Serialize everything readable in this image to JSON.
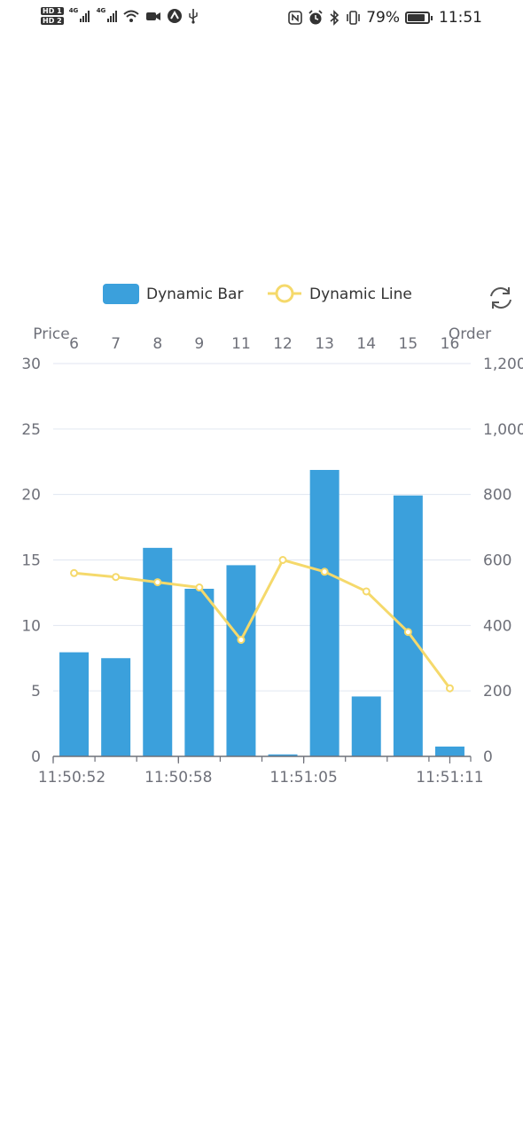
{
  "status_bar": {
    "hd1": "HD 1",
    "hd2": "HD 2",
    "net1": "4G",
    "net2": "4G",
    "battery_pct": "79%",
    "time": "11:51",
    "battery_level": 0.79
  },
  "chart_data": {
    "type": "bar",
    "legend": {
      "position": "top-center",
      "bar_label": "Dynamic Bar",
      "line_label": "Dynamic Line"
    },
    "refresh_icon": "refresh-icon",
    "x_bottom": {
      "tick_labels": [
        "11:50:52",
        "11:50:58",
        "11:51:05",
        "11:51:11"
      ],
      "tick_positions": [
        0,
        3,
        6,
        9
      ],
      "total_categories": 10
    },
    "x_top": {
      "categories": [
        "6",
        "7",
        "8",
        "9",
        "11",
        "12",
        "13",
        "14",
        "15",
        "16"
      ]
    },
    "y_left": {
      "name": "Price",
      "min": 0,
      "max": 30,
      "ticks": [
        0,
        5,
        10,
        15,
        20,
        25,
        30
      ]
    },
    "y_right": {
      "name": "Order",
      "min": 0,
      "max": 1200,
      "ticks": [
        0,
        200,
        400,
        600,
        800,
        1000,
        1200
      ],
      "tick_labels": [
        "0",
        "200",
        "400",
        "600",
        "800",
        "1,000",
        "1,200"
      ]
    },
    "series": [
      {
        "type": "bar",
        "name": "Dynamic Bar",
        "axis": "right",
        "color": "#3ba0dc",
        "values": [
          318,
          300,
          637,
          512,
          584,
          6,
          875,
          183,
          797,
          30
        ]
      },
      {
        "type": "line",
        "name": "Dynamic Line",
        "axis": "left",
        "color": "#f5d96b",
        "values": [
          14.0,
          13.7,
          13.3,
          12.9,
          8.9,
          15.0,
          14.1,
          12.6,
          9.5,
          5.2
        ]
      }
    ],
    "grid": true
  }
}
